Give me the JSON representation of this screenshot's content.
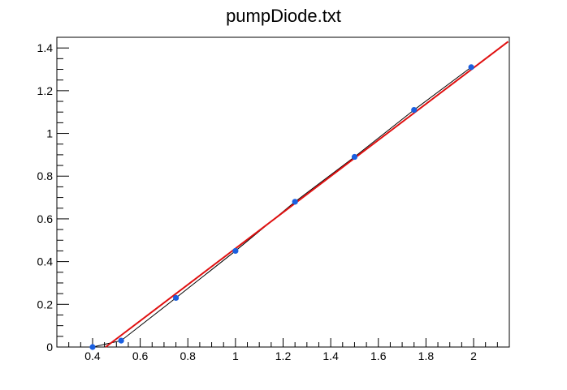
{
  "chart_data": {
    "type": "scatter",
    "title": "pumpDiode.txt",
    "xlabel": "",
    "ylabel": "",
    "xlim": [
      0.25,
      2.15
    ],
    "ylim": [
      0,
      1.45
    ],
    "grid": false,
    "x_ticks": [
      "0.4",
      "0.6",
      "0.8",
      "1",
      "1.2",
      "1.4",
      "1.6",
      "1.8",
      "2"
    ],
    "x_tick_values": [
      0.4,
      0.6,
      0.8,
      1.0,
      1.2,
      1.4,
      1.6,
      1.8,
      2.0
    ],
    "y_ticks": [
      "0",
      "0.2",
      "0.4",
      "0.6",
      "0.8",
      "1",
      "1.2",
      "1.4"
    ],
    "y_tick_values": [
      0,
      0.2,
      0.4,
      0.6,
      0.8,
      1.0,
      1.2,
      1.4
    ],
    "series": [
      {
        "kind": "points",
        "color": "#1a5fe0",
        "x": [
          0.4,
          0.52,
          0.75,
          1.0,
          1.25,
          1.5,
          1.75,
          1.99
        ],
        "y": [
          0.0,
          0.03,
          0.23,
          0.45,
          0.68,
          0.89,
          1.11,
          1.31
        ]
      },
      {
        "kind": "connecting-line",
        "color": "#000000",
        "x": [
          0.4,
          0.52,
          0.75,
          1.0,
          1.25,
          1.5,
          1.75,
          1.99
        ],
        "y": [
          0.0,
          0.03,
          0.23,
          0.45,
          0.68,
          0.89,
          1.11,
          1.31
        ]
      },
      {
        "kind": "fit-line",
        "color": "#e01010",
        "x": [
          0.455,
          2.145
        ],
        "y": [
          0.0,
          1.43
        ]
      }
    ]
  }
}
